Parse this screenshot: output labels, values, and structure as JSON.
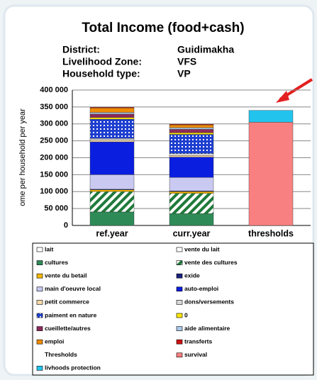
{
  "chart_data": {
    "type": "stacked_bar",
    "title": "Total Income (food+cash)",
    "info": [
      {
        "label": "District:",
        "value": "Guidimakha"
      },
      {
        "label": "Livelihood Zone:",
        "value": "VFS"
      },
      {
        "label": "Household type:",
        "value": "VP"
      }
    ],
    "y_label": "ome per household per year",
    "categories": [
      "ref.year",
      "curr.year",
      "thresholds"
    ],
    "ylim": [
      0,
      400000
    ],
    "yticks": [
      {
        "value": 0,
        "label": "0"
      },
      {
        "value": 50000,
        "label": "50 000"
      },
      {
        "value": 100000,
        "label": "100 000"
      },
      {
        "value": 150000,
        "label": "150 000"
      },
      {
        "value": 200000,
        "label": "200 000"
      },
      {
        "value": 250000,
        "label": "250 000"
      },
      {
        "value": 300000,
        "label": "300 000"
      },
      {
        "value": 350000,
        "label": "350 000"
      },
      {
        "value": 400000,
        "label": "400 000"
      }
    ],
    "grid": true,
    "legend_title": "Thresholds",
    "series": [
      {
        "name": "lait",
        "color": "#ffffff",
        "values": [
          0,
          0,
          null
        ]
      },
      {
        "name": "vente du lait",
        "color": "#ffffff",
        "values": [
          0,
          0,
          null
        ]
      },
      {
        "name": "cultures",
        "color": "#2e8b57",
        "values": [
          40000,
          35000,
          null
        ]
      },
      {
        "name": "vente des cultures",
        "color": "#1f7a3a",
        "pattern": "hatch",
        "values": [
          60000,
          60000,
          null
        ]
      },
      {
        "name": "vente du betail",
        "color": "#f5b800",
        "values": [
          5000,
          5000,
          null
        ]
      },
      {
        "name": "exide",
        "color": "#1a237e",
        "values": [
          2000,
          2000,
          null
        ]
      },
      {
        "name": "main d'oeuvre local",
        "color": "#c9c9f2",
        "values": [
          43000,
          40000,
          null
        ]
      },
      {
        "name": "auto-emploi",
        "color": "#0a1ee0",
        "values": [
          97000,
          60000,
          null
        ]
      },
      {
        "name": "petit commerce",
        "color": "#f7d9a8",
        "values": [
          5000,
          5000,
          null
        ]
      },
      {
        "name": "dons/versements",
        "color": "#d9d9d9",
        "values": [
          5000,
          5000,
          null
        ]
      },
      {
        "name": "paiment en nature",
        "color": "#1e3fd0",
        "pattern": "dots",
        "values": [
          57000,
          57000,
          null
        ]
      },
      {
        "name": "0",
        "color": "#ffe600",
        "values": [
          5000,
          5000,
          null
        ]
      },
      {
        "name": "cueillette/autres",
        "color": "#8b2a5a",
        "values": [
          10000,
          10000,
          null
        ]
      },
      {
        "name": "aide alimentaire",
        "color": "#a9c9e8",
        "values": [
          5000,
          5000,
          null
        ]
      },
      {
        "name": "emploi",
        "color": "#f08c00",
        "values": [
          13000,
          8000,
          null
        ]
      },
      {
        "name": "transferts",
        "color": "#d01010",
        "values": [
          2000,
          2000,
          null
        ]
      },
      {
        "name": "survival",
        "color": "#f98080",
        "values": [
          null,
          null,
          305000
        ]
      },
      {
        "name": "livhoods protection",
        "color": "#22c4ee",
        "values": [
          null,
          null,
          35000
        ]
      }
    ]
  }
}
